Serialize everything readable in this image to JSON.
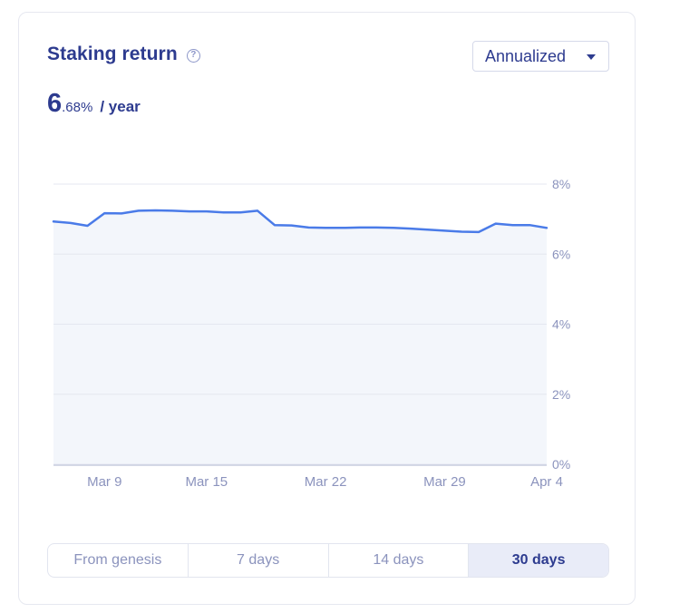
{
  "header": {
    "title": "Staking return",
    "help_icon": "help-circle-icon",
    "dropdown": {
      "selected": "Annualized",
      "icon": "caret-down-icon"
    }
  },
  "summary": {
    "integer": "6",
    "fraction": ".68",
    "percent": "%",
    "unit": "/ year"
  },
  "chart_data": {
    "type": "area",
    "title": "",
    "xlabel": "",
    "ylabel": "",
    "y_unit": "%",
    "ylim": [
      0,
      8
    ],
    "y_ticks": [
      "8%",
      "6%",
      "4%",
      "2%",
      "0%"
    ],
    "y_axis_position": "right",
    "grid": true,
    "x_ticks": [
      "Mar 9",
      "Mar 15",
      "Mar 22",
      "Mar 29",
      "Apr 4"
    ],
    "x_tick_dates": [
      "2024-03-09",
      "2024-03-15",
      "2024-03-22",
      "2024-03-29",
      "2024-04-04"
    ],
    "x_range": [
      "2024-03-06",
      "2024-04-04"
    ],
    "series": [
      {
        "name": "",
        "color": "#4a7be8",
        "fill": "#f3f6fb",
        "points": [
          [
            "2024-03-06",
            6.93
          ],
          [
            "2024-03-07",
            6.89
          ],
          [
            "2024-03-08",
            6.81
          ],
          [
            "2024-03-09",
            7.17
          ],
          [
            "2024-03-10",
            7.16
          ],
          [
            "2024-03-11",
            7.24
          ],
          [
            "2024-03-12",
            7.25
          ],
          [
            "2024-03-13",
            7.24
          ],
          [
            "2024-03-14",
            7.22
          ],
          [
            "2024-03-15",
            7.22
          ],
          [
            "2024-03-16",
            7.19
          ],
          [
            "2024-03-17",
            7.19
          ],
          [
            "2024-03-18",
            7.24
          ],
          [
            "2024-03-19",
            6.83
          ],
          [
            "2024-03-20",
            6.82
          ],
          [
            "2024-03-21",
            6.76
          ],
          [
            "2024-03-22",
            6.75
          ],
          [
            "2024-03-23",
            6.75
          ],
          [
            "2024-03-24",
            6.76
          ],
          [
            "2024-03-25",
            6.76
          ],
          [
            "2024-03-26",
            6.75
          ],
          [
            "2024-03-27",
            6.73
          ],
          [
            "2024-03-28",
            6.7
          ],
          [
            "2024-03-29",
            6.67
          ],
          [
            "2024-03-30",
            6.64
          ],
          [
            "2024-03-31",
            6.63
          ],
          [
            "2024-04-01",
            6.87
          ],
          [
            "2024-04-02",
            6.83
          ],
          [
            "2024-04-03",
            6.83
          ],
          [
            "2024-04-04",
            6.75
          ]
        ]
      }
    ]
  },
  "range_selector": {
    "options": [
      "From genesis",
      "7 days",
      "14 days",
      "30 days"
    ],
    "selected": "30 days"
  },
  "colors": {
    "accent": "#2d3b8f",
    "line": "#4a7be8",
    "muted": "#8b93bd",
    "active_bg": "#e9ecf8"
  }
}
